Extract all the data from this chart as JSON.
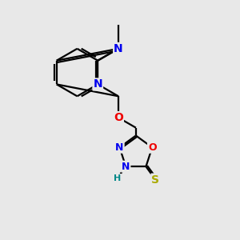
{
  "background_color": "#e8e8e8",
  "line_color": "#000000",
  "bond_width": 1.6,
  "atom_colors": {
    "N": "#0000ee",
    "O": "#ee0000",
    "S": "#aaaa00",
    "H": "#008888",
    "C": "#000000"
  },
  "font_size_atom": 10,
  "font_size_h": 8
}
